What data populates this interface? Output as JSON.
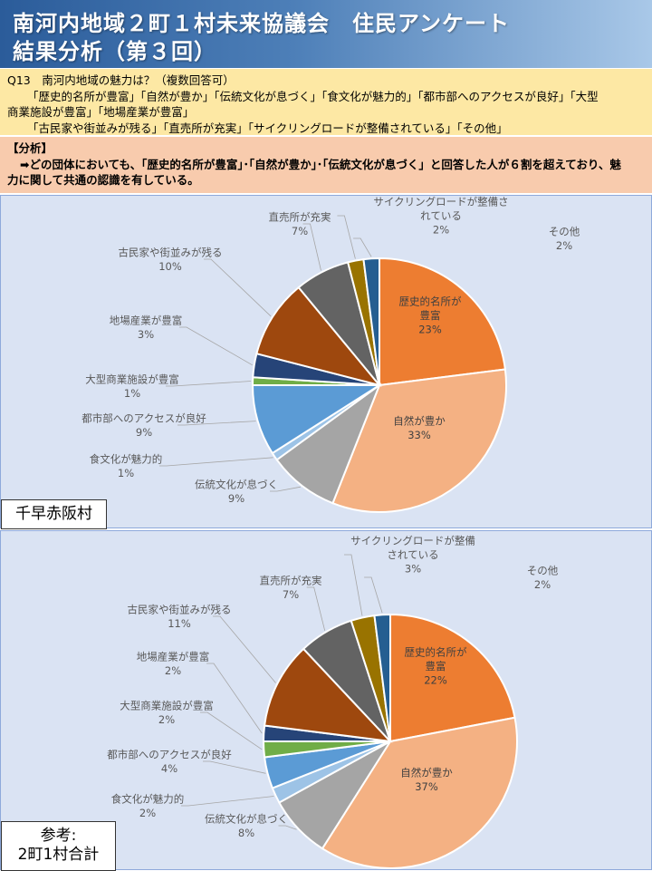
{
  "header": {
    "title_line1": "南河内地域２町１村未来協議会　住民アンケート",
    "title_line2": "結果分析（第３回）"
  },
  "question": {
    "line1": "Q13　南河内地域の魅力は？（複数回答可）",
    "line2": "「歴史的名所が豊富」「自然が豊か」「伝統文化が息づく」「食文化が魅力的」「都市部へのアクセスが良好」「大型",
    "line3": "商業施設が豊富」「地場産業が豊富」",
    "line4": "「古民家や街並みが残る」「直売所が充実」「サイクリングロードが整備されている」「その他」"
  },
  "analysis": {
    "heading": "【分析】",
    "line1": "➡どの団体においても、｢歴史的名所が豊富｣･｢自然が豊か｣･｢伝統文化が息づく」と回答した人が６割を超えており、魅",
    "line2": "力に関して共通の認識を有している。"
  },
  "colors": {
    "title_bar": "#2b5c9a",
    "question_bg": "#fde8a4",
    "analysis_bg": "#f8cbad",
    "panel_bg": "#dae3f3"
  },
  "chart_data": [
    {
      "type": "pie",
      "panel_label": "千早赤阪村",
      "start": "12 o'clock, clockwise",
      "categories": [
        "歴史的名所が豊富",
        "自然が豊か",
        "伝統文化が息づく",
        "食文化が魅力的",
        "都市部へのアクセスが良好",
        "大型商業施設が豊富",
        "地場産業が豊富",
        "古民家や街並みが残る",
        "直売所が充実",
        "サイクリングロードが整備されている",
        "その他"
      ],
      "values": [
        23,
        33,
        9,
        1,
        9,
        1,
        3,
        10,
        7,
        2,
        2
      ],
      "value_labels": [
        "23%",
        "33%",
        "9%",
        "1%",
        "9%",
        "1%",
        "3%",
        "10%",
        "7%",
        "2%",
        "2%"
      ],
      "label_lines": [
        [
          "歴史的名所が",
          "豊富"
        ],
        [
          "自然が豊か"
        ],
        [
          "伝統文化が息づく"
        ],
        [
          "食文化が魅力的"
        ],
        [
          "都市部へのアクセスが良好"
        ],
        [
          "大型商業施設が豊富"
        ],
        [
          "地場産業が豊富"
        ],
        [
          "古民家や街並みが残る"
        ],
        [
          "直売所が充実"
        ],
        [
          "サイクリングロードが整備さ",
          "れている"
        ],
        [
          "その他"
        ]
      ],
      "colors": [
        "#ed7d31",
        "#f4b183",
        "#a5a5a5",
        "#9dc3e6",
        "#5b9bd5",
        "#70ad47",
        "#264478",
        "#9e480e",
        "#636363",
        "#997300",
        "#255e91"
      ]
    },
    {
      "type": "pie",
      "panel_label": "参考:\n2町1村合計",
      "panel_label_lines": [
        "参考:",
        "2町1村合計"
      ],
      "start": "12 o'clock, clockwise",
      "categories": [
        "歴史的名所が豊富",
        "自然が豊か",
        "伝統文化が息づく",
        "食文化が魅力的",
        "都市部へのアクセスが良好",
        "大型商業施設が豊富",
        "地場産業が豊富",
        "古民家や街並みが残る",
        "直売所が充実",
        "サイクリングロードが整備されている",
        "その他"
      ],
      "values": [
        22,
        37,
        8,
        2,
        4,
        2,
        2,
        11,
        7,
        3,
        2
      ],
      "value_labels": [
        "22%",
        "37%",
        "8%",
        "2%",
        "4%",
        "2%",
        "2%",
        "11%",
        "7%",
        "3%",
        "2%"
      ],
      "label_lines": [
        [
          "歴史的名所が",
          "豊富"
        ],
        [
          "自然が豊か"
        ],
        [
          "伝統文化が息づく"
        ],
        [
          "食文化が魅力的"
        ],
        [
          "都市部へのアクセスが良好"
        ],
        [
          "大型商業施設が豊富"
        ],
        [
          "地場産業が豊富"
        ],
        [
          "古民家や街並みが残る"
        ],
        [
          "直売所が充実"
        ],
        [
          "サイクリングロードが整備",
          "されている"
        ],
        [
          "その他"
        ]
      ],
      "colors": [
        "#ed7d31",
        "#f4b183",
        "#a5a5a5",
        "#9dc3e6",
        "#5b9bd5",
        "#70ad47",
        "#264478",
        "#9e480e",
        "#636363",
        "#997300",
        "#255e91"
      ]
    }
  ]
}
